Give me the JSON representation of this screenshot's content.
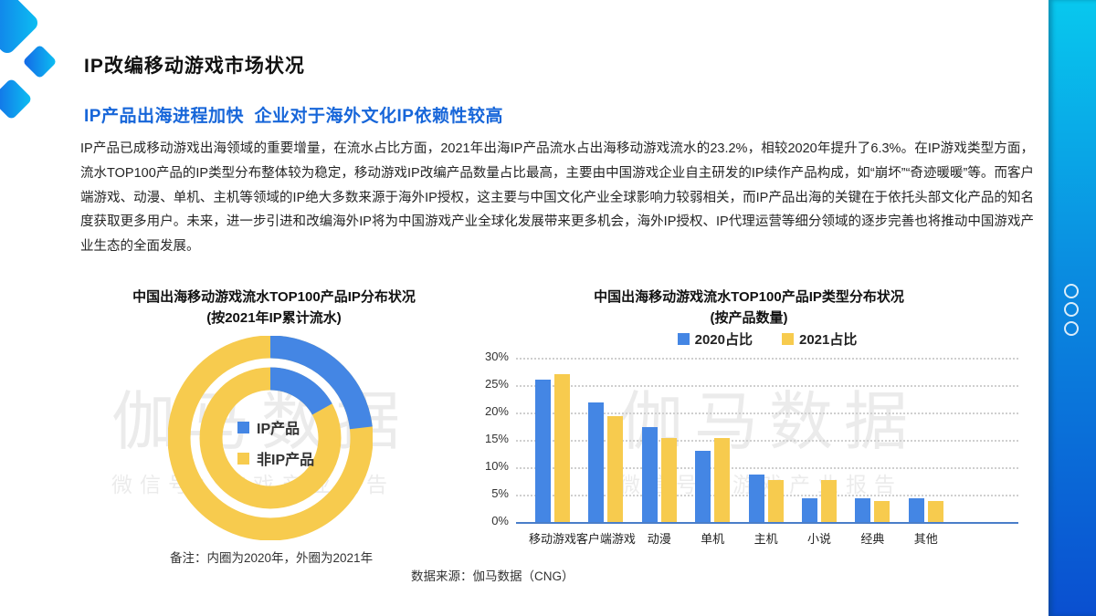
{
  "slide": {
    "title": "IP改编移动游戏市场状况",
    "subtitle": "IP产品出海进程加快  企业对于海外文化IP依赖性较高",
    "body": "IP产品已成移动游戏出海领域的重要增量，在流水占比方面，2021年出海IP产品流水占出海移动游戏流水的23.2%，相较2020年提升了6.3%。在IP游戏类型方面，流水TOP100产品的IP类型分布整体较为稳定，移动游戏IP改编产品数量占比最高，主要由中国游戏企业自主研发的IP续作产品构成，如“崩坏”“奇迹暖暖”等。而客户端游戏、动漫、单机、主机等领域的IP绝大多数来源于海外IP授权，这主要与中国文化产业全球影响力较弱相关，而IP产品出海的关键在于依托头部文化产品的知名度获取更多用户。未来，进一步引进和改编海外IP将为中国游戏产业全球化发展带来更多机会，海外IP授权、IP代理运营等细分领域的逐步完善也将推动中国游戏产业生态的全面发展。",
    "source": "数据来源：伽马数据（CNG）"
  },
  "watermark": {
    "brand": "伽马数据",
    "wechat": "微信号：游戏产业报告"
  },
  "colors": {
    "blue": "#4486E4",
    "yellow": "#F7CB4E",
    "subtitle_blue": "#1766D9",
    "axis_blue": "#4A7EC9"
  },
  "chart_data": [
    {
      "type": "pie",
      "variant": "double-ring-donut",
      "title": "中国出海移动游戏流水TOP100产品IP分布状况",
      "subtitle": "(按2021年IP累计流水)",
      "note": "备注：内圈为2020年，外圈为2021年",
      "legend": [
        "IP产品",
        "非IP产品"
      ],
      "rings": [
        {
          "name": "内圈（2020年）",
          "slices": [
            {
              "label": "IP产品",
              "value": 16.9
            },
            {
              "label": "非IP产品",
              "value": 83.1
            }
          ]
        },
        {
          "name": "外圈（2021年）",
          "slices": [
            {
              "label": "IP产品",
              "value": 23.2
            },
            {
              "label": "非IP产品",
              "value": 76.8
            }
          ]
        }
      ],
      "start_angle": "12点钟方向顺时针"
    },
    {
      "type": "bar",
      "title": "中国出海移动游戏流水TOP100产品IP类型分布状况",
      "subtitle": "(按产品数量)",
      "categories": [
        "移动游戏",
        "客户端游戏",
        "动漫",
        "单机",
        "主机",
        "小说",
        "经典",
        "其他"
      ],
      "series": [
        {
          "name": "2020占比",
          "color_key": "blue",
          "values": [
            26,
            21.8,
            17.4,
            13,
            8.7,
            4.4,
            4.4,
            4.4
          ]
        },
        {
          "name": "2021占比",
          "color_key": "yellow",
          "values": [
            27,
            19.3,
            15.3,
            15.3,
            7.7,
            7.7,
            3.9,
            3.9
          ]
        }
      ],
      "ylabel": "",
      "ylim": [
        0,
        30
      ],
      "yticks": [
        0,
        5,
        10,
        15,
        20,
        25,
        30
      ],
      "ytick_format": "percent",
      "grid": "horizontal-dotted",
      "legend_position": "top-center"
    }
  ]
}
